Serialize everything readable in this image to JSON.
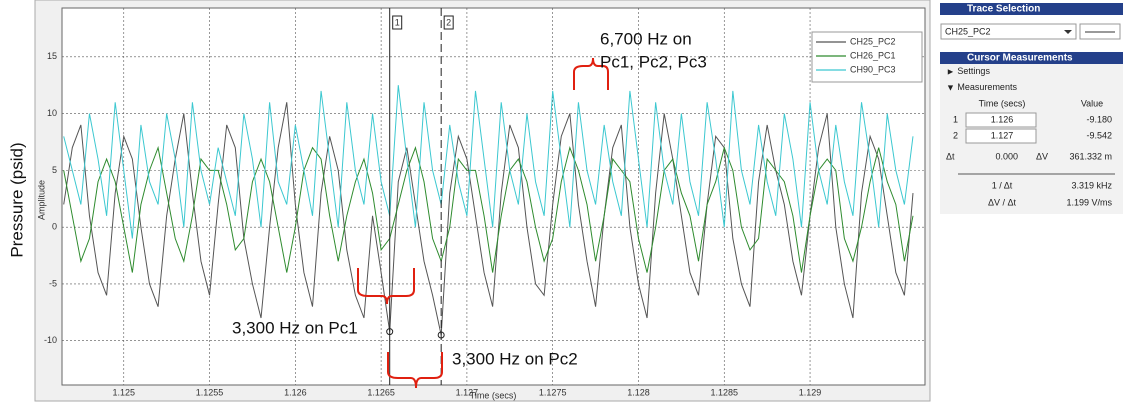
{
  "chart_data": {
    "type": "line",
    "x_label": "Time (secs)",
    "y_label": "Amplitude",
    "outer_y_label": "Pressure (psid)",
    "xlim": [
      1.12464,
      1.12967
    ],
    "ylim": [
      -13.9,
      19.3
    ],
    "xticks": [
      1.125,
      1.1255,
      1.126,
      1.1265,
      1.127,
      1.1275,
      1.128,
      1.1285,
      1.129
    ],
    "yticks": [
      15,
      10,
      5,
      0,
      -5,
      -10
    ],
    "grid": true,
    "legend": "upper right",
    "x": [
      1.12465,
      1.1247,
      1.12475,
      1.1248,
      1.12485,
      1.1249,
      1.12495,
      1.125,
      1.12505,
      1.1251,
      1.12515,
      1.1252,
      1.12525,
      1.1253,
      1.12535,
      1.1254,
      1.12545,
      1.1255,
      1.12555,
      1.1256,
      1.12565,
      1.1257,
      1.12575,
      1.1258,
      1.12585,
      1.1259,
      1.12595,
      1.126,
      1.12605,
      1.1261,
      1.12615,
      1.1262,
      1.12625,
      1.1263,
      1.12635,
      1.1264,
      1.12645,
      1.1265,
      1.12655,
      1.1266,
      1.12665,
      1.1267,
      1.12675,
      1.1268,
      1.12685,
      1.1269,
      1.12695,
      1.127,
      1.12705,
      1.1271,
      1.12715,
      1.1272,
      1.12725,
      1.1273,
      1.12735,
      1.1274,
      1.12745,
      1.1275,
      1.12755,
      1.1276,
      1.12765,
      1.1277,
      1.12775,
      1.1278,
      1.12785,
      1.1279,
      1.12795,
      1.128,
      1.12805,
      1.1281,
      1.12815,
      1.1282,
      1.12825,
      1.1283,
      1.12835,
      1.1284,
      1.12845,
      1.1285,
      1.12855,
      1.1286,
      1.12865,
      1.1287,
      1.12875,
      1.1288,
      1.12885,
      1.1289,
      1.12895,
      1.129,
      1.12905,
      1.1291,
      1.12915,
      1.1292,
      1.12925,
      1.1293,
      1.12935,
      1.1294,
      1.12945,
      1.1295,
      1.12955,
      1.1296
    ],
    "series": [
      {
        "name": "CH25_PC2",
        "color": "#555555",
        "values": [
          2,
          7,
          9,
          1,
          -4,
          -6,
          3,
          8,
          6,
          0,
          -5,
          -7,
          1,
          6,
          10,
          3,
          -3,
          -6,
          2,
          9,
          7,
          -1,
          -5,
          -8,
          0,
          7,
          11,
          2,
          -4,
          -7,
          3,
          8,
          5,
          -2,
          -6,
          -8,
          1,
          -4,
          -9.2,
          4,
          7,
          2,
          -3,
          -6,
          -9.5,
          3,
          8,
          6,
          1,
          -4,
          -7,
          3,
          9,
          7,
          0,
          -5,
          -6,
          2,
          8,
          10,
          2,
          -3,
          -7,
          1,
          7,
          9,
          0,
          -5,
          -8,
          3,
          10,
          6,
          1,
          -4,
          -6,
          2,
          8,
          7,
          -1,
          -5,
          -7,
          4,
          9,
          5,
          2,
          -3,
          -6,
          1,
          7,
          10,
          0,
          -5,
          -8,
          3,
          8,
          6,
          1,
          -4,
          -6,
          3
        ]
      },
      {
        "name": "CH26_PC1",
        "color": "#2e8b2e",
        "values": [
          5,
          1,
          -3,
          -1,
          4,
          6,
          4,
          0,
          -4,
          2,
          5,
          7,
          3,
          -1,
          -3,
          1,
          6,
          5,
          5,
          2,
          -2,
          -1,
          4,
          6,
          4,
          0,
          -4,
          0,
          5,
          7,
          6,
          1,
          -3,
          1,
          4,
          6,
          3,
          -2,
          -1,
          2,
          5,
          7,
          4,
          -1,
          -3,
          0,
          6,
          5,
          5,
          1,
          -4,
          1,
          5,
          6,
          4,
          0,
          -3,
          -1,
          4,
          7,
          5,
          2,
          -3,
          1,
          6,
          5,
          4,
          -1,
          -4,
          0,
          5,
          6,
          3,
          1,
          -3,
          2,
          4,
          7,
          5,
          0,
          -2,
          -1,
          6,
          5,
          4,
          1,
          -4,
          1,
          5,
          6,
          5,
          -1,
          -3,
          0,
          4,
          7,
          4,
          2,
          -3,
          1
        ]
      },
      {
        "name": "CH90_PC3",
        "color": "#3cc8d0",
        "values": [
          8,
          5,
          2,
          10,
          6,
          1,
          11,
          5,
          -1,
          9,
          4,
          2,
          10,
          6,
          0,
          11,
          5,
          2,
          7,
          4,
          1,
          10,
          6,
          0,
          11,
          4,
          2,
          9,
          5,
          1,
          12,
          6,
          0,
          11,
          5,
          2,
          10,
          4,
          1,
          12.5,
          6,
          0,
          11,
          5,
          2,
          9,
          4,
          1,
          12,
          6,
          0,
          11,
          5,
          2,
          10,
          4,
          1,
          12,
          6,
          0,
          11,
          5,
          2,
          9,
          4,
          1,
          12,
          6,
          0,
          11,
          5,
          2,
          10,
          4,
          1,
          11,
          6,
          0,
          12,
          5,
          2,
          9,
          4,
          1,
          10,
          6,
          0,
          11,
          5,
          2,
          9,
          4,
          1,
          11,
          6,
          0,
          10,
          5,
          2,
          8
        ]
      }
    ],
    "cursors": [
      {
        "label": "1",
        "x": 1.12655
      },
      {
        "label": "2",
        "x": 1.12685
      }
    ],
    "annotations": {
      "high": [
        "6,700 Hz on",
        "Pc1, Pc2, Pc3"
      ],
      "pc1": "3,300 Hz on Pc1",
      "pc2": "3,300 Hz on Pc2"
    }
  },
  "trace_selection": {
    "title": "Trace Selection",
    "selected": "CH25_PC2"
  },
  "cursor_measurements": {
    "title": "Cursor Measurements",
    "settings": "Settings",
    "measurements": "Measurements",
    "header": [
      "Time (secs)",
      "Value"
    ],
    "rows": [
      [
        "1",
        "1.126",
        "-9.180"
      ],
      [
        "2",
        "1.127",
        "-9.542"
      ]
    ],
    "delta": [
      "Δt",
      "0.000",
      "ΔV",
      "361.332 m"
    ],
    "derived": [
      [
        "1 / Δt",
        "3.319 kHz"
      ],
      [
        "ΔV / Δt",
        "1.199 V/ms"
      ]
    ]
  }
}
